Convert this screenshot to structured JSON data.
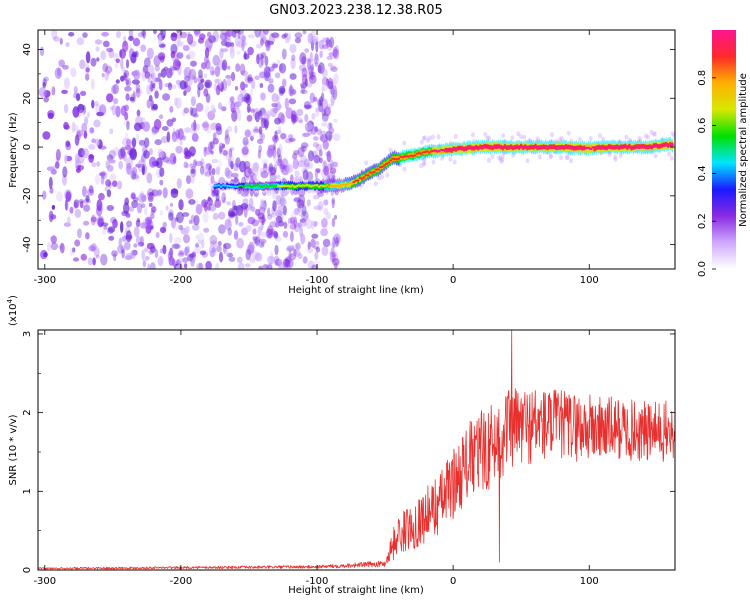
{
  "figure_title": "GN03.2023.238.12.38.R05",
  "colors": {
    "frame": "#000000",
    "snr_line": "#e8312f"
  },
  "colorbar": {
    "label": "Normalized spectral amplitude",
    "ticks": [
      "0.0",
      "0.2",
      "0.4",
      "0.6",
      "0.8"
    ],
    "stops": [
      "#ffffff",
      "#cfa8ff",
      "#8a2be2",
      "#1a1aff",
      "#00e5ff",
      "#00e000",
      "#d8e800",
      "#ffb000",
      "#ff2a2a",
      "#ff1493"
    ]
  },
  "chart_data": [
    {
      "type": "heatmap",
      "title": "",
      "xlabel": "Height of straight line (km)",
      "ylabel": "Frequency (Hz)",
      "xlim": [
        -305,
        163
      ],
      "ylim": [
        -50,
        48
      ],
      "xticks": [
        -300,
        -200,
        -100,
        0,
        100
      ],
      "yticks": [
        -40,
        -20,
        0,
        20,
        40
      ],
      "colormap": "normalized spectral amplitude 0-1",
      "noise_region_x": [
        -305,
        -85
      ],
      "ridge": {
        "x": [
          -175,
          -150,
          -125,
          -100,
          -85,
          -75,
          -65,
          -55,
          -45,
          -35,
          -20,
          0,
          20,
          40,
          60,
          80,
          100,
          120,
          140,
          160
        ],
        "y": [
          -16,
          -16,
          -16,
          -16,
          -16,
          -15,
          -12,
          -9,
          -5,
          -4,
          -2,
          -1,
          0,
          0,
          0,
          0,
          -0.5,
          0,
          0,
          1
        ],
        "amplitude": [
          0.35,
          0.45,
          0.55,
          0.6,
          0.7,
          0.75,
          0.78,
          0.8,
          0.82,
          0.85,
          0.85,
          0.9,
          0.92,
          0.92,
          0.92,
          0.9,
          0.88,
          0.9,
          0.9,
          0.92
        ]
      }
    },
    {
      "type": "line",
      "title": "",
      "xlabel": "Height of straight line (km)",
      "ylabel": "SNR (10 * v/v)",
      "y_multiplier": "(x10",
      "y_multiplier_exp": "4",
      "y_multiplier_close": ")",
      "xlim": [
        -305,
        163
      ],
      "ylim": [
        0,
        3.05
      ],
      "xticks": [
        -300,
        -200,
        -100,
        0,
        100
      ],
      "yticks": [
        0,
        1,
        2,
        3
      ],
      "envelope": {
        "x": [
          -305,
          -100,
          -50,
          -45,
          -40,
          -30,
          -20,
          -10,
          0,
          10,
          20,
          30,
          40,
          60,
          80,
          100,
          120,
          140,
          163
        ],
        "mean": [
          0.02,
          0.04,
          0.08,
          0.3,
          0.45,
          0.55,
          0.7,
          0.85,
          1.1,
          1.35,
          1.5,
          1.6,
          1.8,
          1.85,
          1.85,
          1.8,
          1.8,
          1.75,
          1.75
        ],
        "amp": [
          0.01,
          0.02,
          0.04,
          0.2,
          0.25,
          0.3,
          0.35,
          0.4,
          0.45,
          0.5,
          0.55,
          0.55,
          0.55,
          0.5,
          0.45,
          0.45,
          0.4,
          0.4,
          0.4
        ]
      },
      "peak": {
        "x": 43,
        "y": 3.05
      },
      "dip": {
        "x": 34,
        "y": 0.1
      }
    }
  ]
}
